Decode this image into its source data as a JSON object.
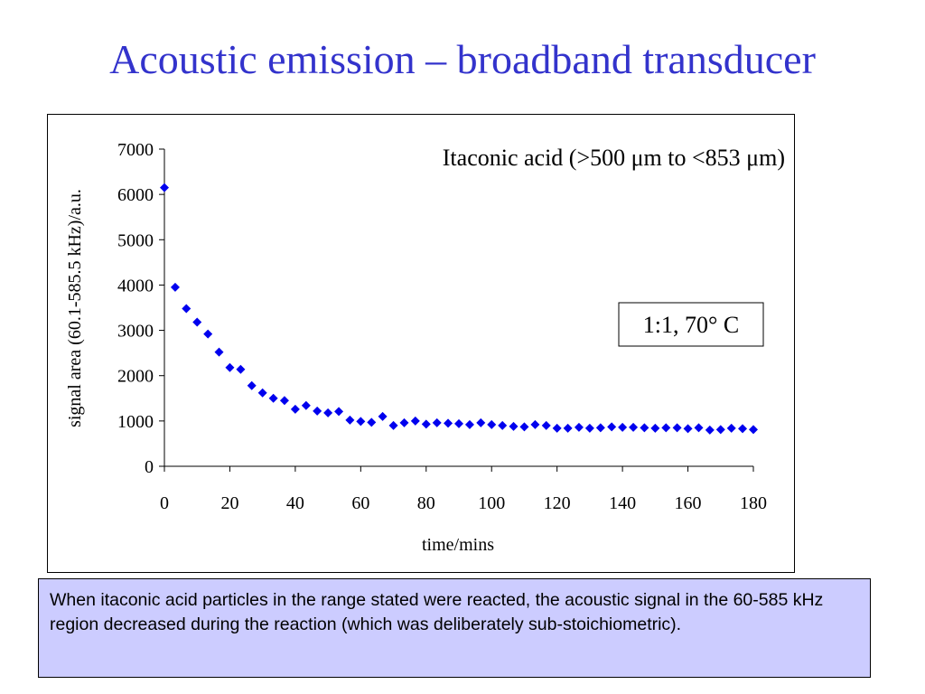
{
  "slide": {
    "title": "Acoustic emission – broadband transducer",
    "title_color": "#3333cc",
    "caption": "When itaconic acid particles in the range stated were reacted, the acoustic signal in the 60-585 kHz region decreased during the reaction (which was deliberately sub-stoichiometric).",
    "caption_bg": "#ccccff"
  },
  "chart_data": {
    "type": "scatter",
    "title": "Itaconic acid (>500 μm to <853 μm)",
    "annotation": "1:1, 70° C",
    "xlabel": "time/mins",
    "ylabel": "signal area (60.1-585.5 kHz)/a.u.",
    "xlim": [
      0,
      180
    ],
    "ylim": [
      0,
      7000
    ],
    "xticks": [
      0,
      20,
      40,
      60,
      80,
      100,
      120,
      140,
      160,
      180
    ],
    "yticks": [
      0,
      1000,
      2000,
      3000,
      4000,
      5000,
      6000,
      7000
    ],
    "grid": false,
    "marker": "diamond",
    "marker_color": "#0000ee",
    "series": [
      {
        "x": [
          0,
          3.3,
          6.7,
          10,
          13.3,
          16.7,
          20,
          23.3,
          26.7,
          30,
          33.3,
          36.7,
          40,
          43.3,
          46.7,
          50,
          53.3,
          56.7,
          60,
          63.3,
          66.7,
          70,
          73.3,
          76.7,
          80,
          83.3,
          86.7,
          90,
          93.3,
          96.7,
          100,
          103.3,
          106.7,
          110,
          113.3,
          116.7,
          120,
          123.3,
          126.7,
          130,
          133.3,
          136.7,
          140,
          143.3,
          146.7,
          150,
          153.3,
          156.7,
          160,
          163.3,
          166.7,
          170,
          173.3,
          176.7,
          180
        ],
        "y": [
          6150,
          3950,
          3480,
          3180,
          2920,
          2520,
          2180,
          2140,
          1780,
          1620,
          1500,
          1450,
          1260,
          1340,
          1220,
          1180,
          1210,
          1020,
          990,
          970,
          1100,
          900,
          960,
          1000,
          930,
          960,
          950,
          940,
          920,
          960,
          920,
          900,
          880,
          870,
          920,
          900,
          840,
          840,
          860,
          840,
          850,
          870,
          860,
          860,
          850,
          840,
          850,
          850,
          830,
          850,
          800,
          810,
          840,
          830,
          810
        ]
      }
    ]
  }
}
